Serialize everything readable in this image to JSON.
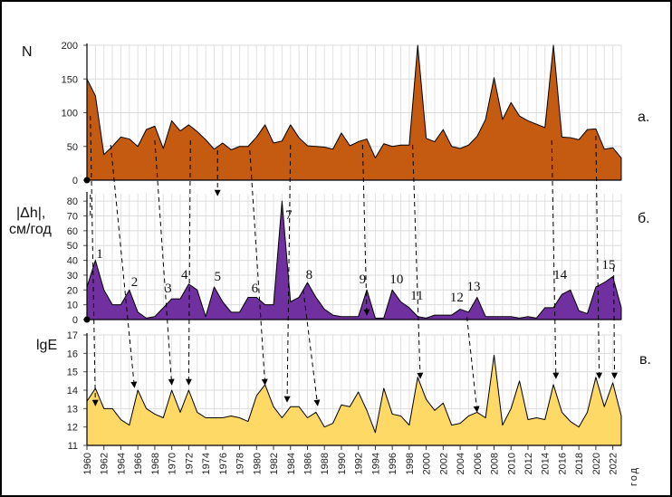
{
  "chart_data": [
    {
      "type": "area",
      "panel_label": "а.",
      "ylabel": "N",
      "ylim": [
        0,
        200
      ],
      "yticks": [
        "0",
        "50",
        "100",
        "150",
        "200"
      ],
      "color": "#c55a11",
      "x": [
        1960,
        1961,
        1962,
        1963,
        1964,
        1965,
        1966,
        1967,
        1968,
        1969,
        1970,
        1971,
        1972,
        1973,
        1974,
        1975,
        1976,
        1977,
        1978,
        1979,
        1980,
        1981,
        1982,
        1983,
        1984,
        1985,
        1986,
        1987,
        1988,
        1989,
        1990,
        1991,
        1992,
        1993,
        1994,
        1995,
        1996,
        1997,
        1998,
        1999,
        2000,
        2001,
        2002,
        2003,
        2004,
        2005,
        2006,
        2007,
        2008,
        2009,
        2010,
        2011,
        2012,
        2013,
        2014,
        2015,
        2016,
        2017,
        2018,
        2019,
        2020,
        2021,
        2022,
        2023
      ],
      "values": [
        150,
        125,
        38,
        50,
        64,
        61,
        50,
        75,
        80,
        47,
        88,
        73,
        82,
        72,
        60,
        46,
        55,
        45,
        50,
        50,
        64,
        82,
        55,
        58,
        82,
        63,
        51,
        50,
        49,
        46,
        70,
        51,
        57,
        61,
        33,
        54,
        50,
        52,
        52,
        200,
        62,
        57,
        75,
        50,
        47,
        52,
        65,
        90,
        152,
        90,
        115,
        95,
        88,
        83,
        78,
        200,
        64,
        63,
        60,
        75,
        76,
        46,
        48,
        33
      ]
    },
    {
      "type": "area",
      "panel_label": "б.",
      "ylabel": [
        "|Δh|,",
        "см/год"
      ],
      "ylim": [
        0,
        85
      ],
      "yticks": [
        "0",
        "10",
        "20",
        "30",
        "40",
        "50",
        "60",
        "70",
        "80"
      ],
      "color": "#7030a0",
      "x": [
        1960,
        1961,
        1962,
        1963,
        1964,
        1965,
        1966,
        1967,
        1968,
        1969,
        1970,
        1971,
        1972,
        1973,
        1974,
        1975,
        1976,
        1977,
        1978,
        1979,
        1980,
        1981,
        1982,
        1983,
        1984,
        1985,
        1986,
        1987,
        1988,
        1989,
        1990,
        1991,
        1992,
        1993,
        1994,
        1995,
        1996,
        1997,
        1998,
        1999,
        2000,
        2001,
        2002,
        2003,
        2004,
        2005,
        2006,
        2007,
        2008,
        2009,
        2010,
        2011,
        2012,
        2013,
        2014,
        2015,
        2016,
        2017,
        2018,
        2019,
        2020,
        2021,
        2022,
        2023
      ],
      "values": [
        22,
        40,
        20,
        10,
        10,
        20,
        5,
        1,
        2,
        8,
        14,
        14,
        24,
        20,
        2,
        22,
        12,
        5,
        5,
        15,
        15,
        10,
        10,
        80,
        12,
        15,
        25,
        15,
        7,
        3,
        2,
        2,
        2,
        20,
        1,
        1,
        20,
        12,
        8,
        2,
        1,
        3,
        3,
        3,
        7,
        5,
        15,
        2,
        2,
        2,
        2,
        1,
        2,
        1,
        8,
        8,
        17,
        20,
        6,
        4,
        22,
        25,
        29,
        8
      ],
      "annotations": [
        "1",
        "2",
        "3",
        "4",
        "5",
        "6",
        "7",
        "8",
        "9",
        "10",
        "11",
        "12",
        "13",
        "14",
        "15"
      ]
    },
    {
      "type": "area",
      "panel_label": "в.",
      "ylabel": "lgE",
      "ylim": [
        11,
        17
      ],
      "yticks": [
        "11",
        "12",
        "13",
        "14",
        "15",
        "16",
        "17"
      ],
      "color": "#ffd966",
      "x": [
        1960,
        1961,
        1962,
        1963,
        1964,
        1965,
        1966,
        1967,
        1968,
        1969,
        1970,
        1971,
        1972,
        1973,
        1974,
        1975,
        1976,
        1977,
        1978,
        1979,
        1980,
        1981,
        1982,
        1983,
        1984,
        1985,
        1986,
        1987,
        1988,
        1989,
        1990,
        1991,
        1992,
        1993,
        1994,
        1995,
        1996,
        1997,
        1998,
        1999,
        2000,
        2001,
        2002,
        2003,
        2004,
        2005,
        2006,
        2007,
        2008,
        2009,
        2010,
        2011,
        2012,
        2013,
        2014,
        2015,
        2016,
        2017,
        2018,
        2019,
        2020,
        2021,
        2022,
        2023
      ],
      "values": [
        13.4,
        14.1,
        13.0,
        13.0,
        12.4,
        12.1,
        14.0,
        13.0,
        12.7,
        12.5,
        14.0,
        12.8,
        14.0,
        12.8,
        12.5,
        12.5,
        12.5,
        12.6,
        12.5,
        12.3,
        13.7,
        14.3,
        13.1,
        12.5,
        13.1,
        13.1,
        12.5,
        12.8,
        12.0,
        12.2,
        13.2,
        13.1,
        13.9,
        12.9,
        11.7,
        14.1,
        12.7,
        12.6,
        12.1,
        14.7,
        13.5,
        12.9,
        13.3,
        12.1,
        12.2,
        12.6,
        12.8,
        12.5,
        15.9,
        12.1,
        13.0,
        14.5,
        12.4,
        12.5,
        12.4,
        14.3,
        12.8,
        12.3,
        12.0,
        12.8,
        14.7,
        13.1,
        14.4,
        12.6
      ]
    }
  ],
  "x_axis": {
    "tick_labels": [
      "1960",
      "1962",
      "1964",
      "1966",
      "1968",
      "1970",
      "1972",
      "1974",
      "1976",
      "1978",
      "1980",
      "1982",
      "1984",
      "1986",
      "1988",
      "1990",
      "1992",
      "1994",
      "1996",
      "1998",
      "2000",
      "2002",
      "2004",
      "2006",
      "2008",
      "2010",
      "2012",
      "2014",
      "2016",
      "2018",
      "2020",
      "2022"
    ],
    "title": "год"
  }
}
